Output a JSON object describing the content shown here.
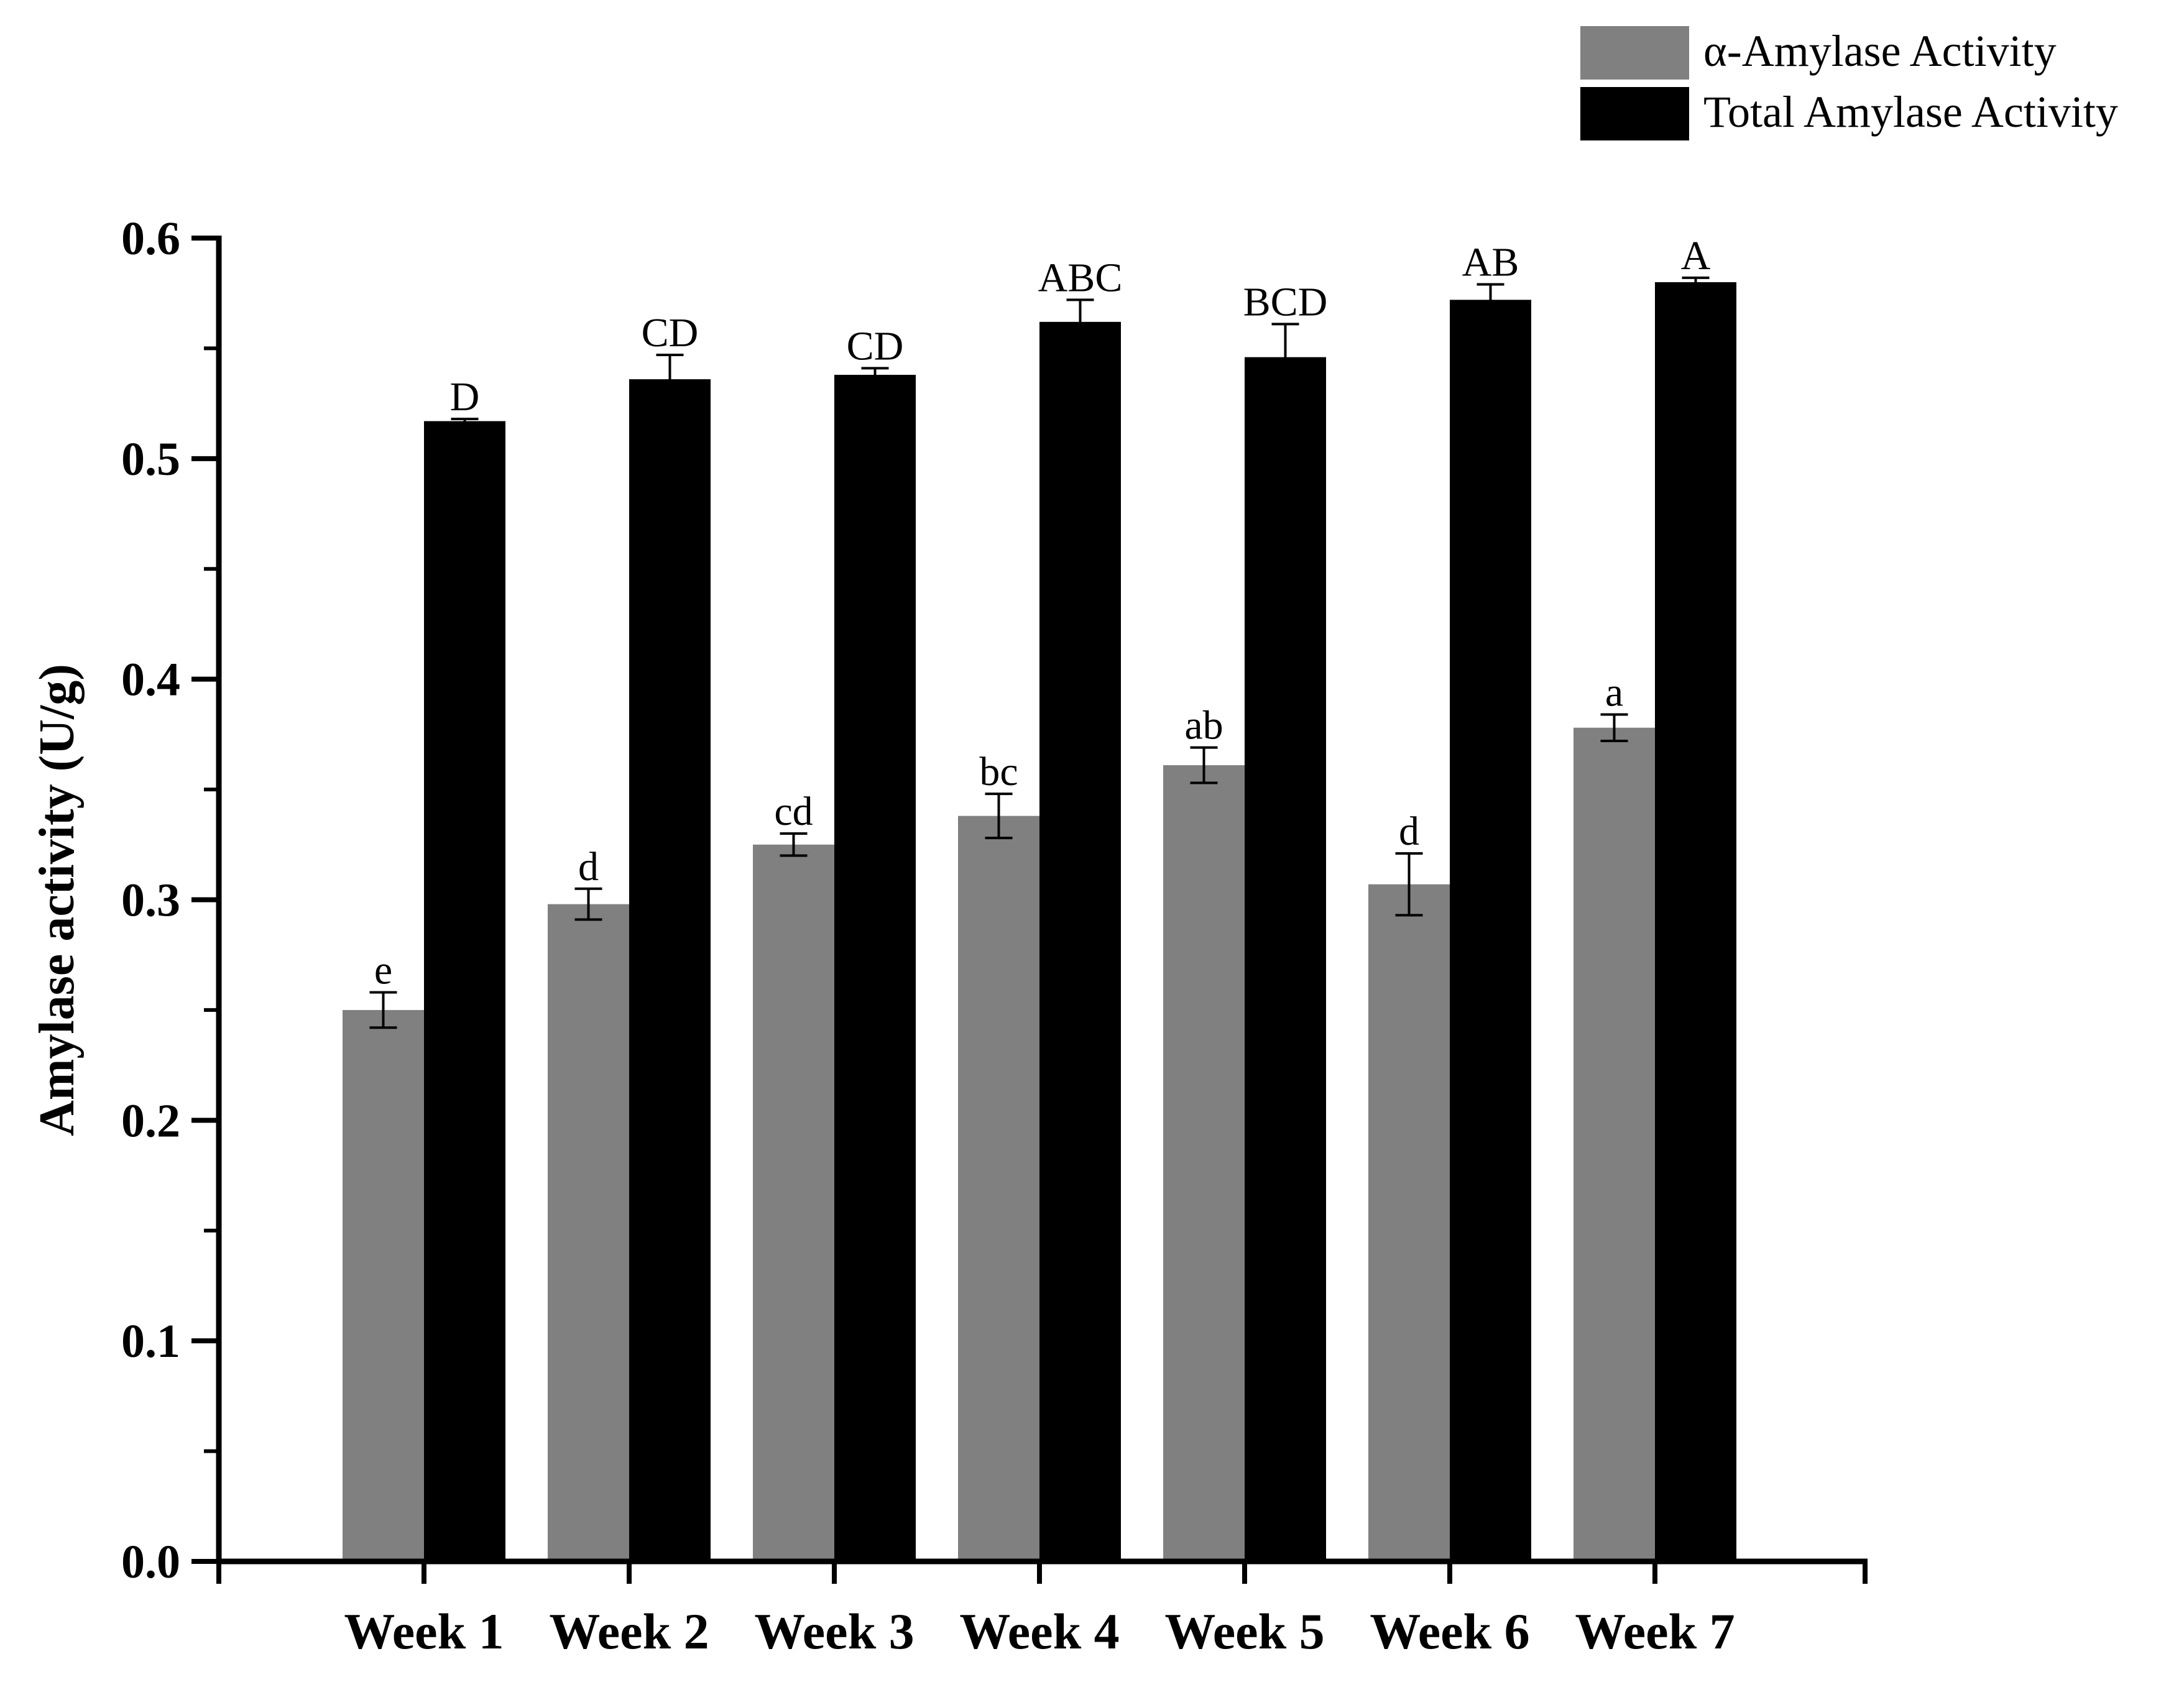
{
  "chart_data": {
    "type": "bar",
    "categories": [
      "Week 1",
      "Week 2",
      "Week 3",
      "Week 4",
      "Week 5",
      "Week 6",
      "Week 7"
    ],
    "series": [
      {
        "name": "α-Amylase Activity",
        "color": "#808080",
        "values": [
          0.25,
          0.298,
          0.325,
          0.338,
          0.361,
          0.307,
          0.378
        ],
        "errors": [
          0.008,
          0.007,
          0.005,
          0.01,
          0.008,
          0.014,
          0.006
        ],
        "significance": [
          "e",
          "d",
          "cd",
          "bc",
          "ab",
          "d",
          "a"
        ]
      },
      {
        "name": "Total Amylase Activity",
        "color": "#000000",
        "values": [
          0.517,
          0.536,
          0.538,
          0.562,
          0.546,
          0.572,
          0.58
        ],
        "errors": [
          0.001,
          0.011,
          0.003,
          0.01,
          0.015,
          0.007,
          0.002
        ],
        "significance": [
          "D",
          "CD",
          "CD",
          "ABC",
          "BCD",
          "AB",
          "A"
        ]
      }
    ],
    "xlabel": "",
    "ylabel": "Amylase activity (U/g)",
    "ylim": [
      0,
      0.6
    ],
    "yticks": [
      "0.0",
      "0.1",
      "0.2",
      "0.3",
      "0.4",
      "0.5",
      "0.6"
    ],
    "grid": false,
    "legend_position": "top-right"
  }
}
